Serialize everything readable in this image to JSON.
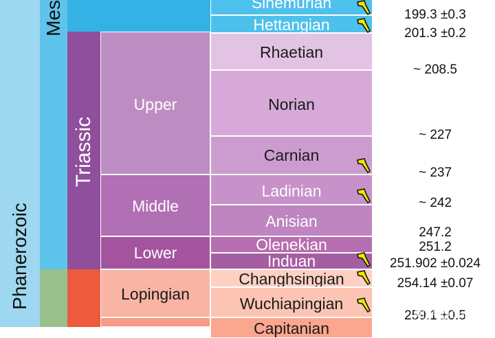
{
  "eon": {
    "label": "Phanerozoic"
  },
  "era": {
    "label": "Mes"
  },
  "period": {
    "label": "Triassic"
  },
  "epochs": {
    "upper": "Upper",
    "middle": "Middle",
    "lower": "Lower",
    "lopingian": "Lopingian"
  },
  "stages": {
    "sinemurian": "Sinemurian",
    "hettangian": "Hettangian",
    "rhaetian": "Rhaetian",
    "norian": "Norian",
    "carnian": "Carnian",
    "ladinian": "Ladinian",
    "anisian": "Anisian",
    "olenekian": "Olenekian",
    "induan": "Induan",
    "changhsingian": "Changhsingian",
    "wuchiapingian": "Wuchiapingian",
    "capitanian": "Capitanian"
  },
  "ages": {
    "a1": "199.3 ±0.3",
    "a2": "201.3 ±0.2",
    "a3": "~ 208.5",
    "a4": "~ 227",
    "a5": "~ 237",
    "a6": "~ 242",
    "a7": "247.2",
    "a8": "251.2",
    "a9": "251.902 ±0.024",
    "a10": "254.14 ±0.07",
    "a11": "259.1 ±0.5"
  },
  "watermark": "知乎 @Congyu",
  "colors": {
    "eon": "#9ed7f0",
    "jurassic": "#34b2e6",
    "triassic": "#8f4f9c",
    "upper_triassic": "#bd8cc3",
    "rhaetian": "#e3c3e3",
    "norian": "#d6a9d8",
    "carnian": "#cc9ccf",
    "middle_triassic": "#b16fb4",
    "ladinian": "#c791c9",
    "anisian": "#be85c0",
    "lower_triassic": "#a4549f",
    "olenekian": "#b66eb0",
    "induan": "#a65ea3",
    "paleozoic": "#99c08d",
    "permian": "#ee5a3d",
    "lopingian": "#f9b4a3",
    "changhsingian": "#fdd0c1",
    "wuchiapingian": "#fcc4b3"
  }
}
